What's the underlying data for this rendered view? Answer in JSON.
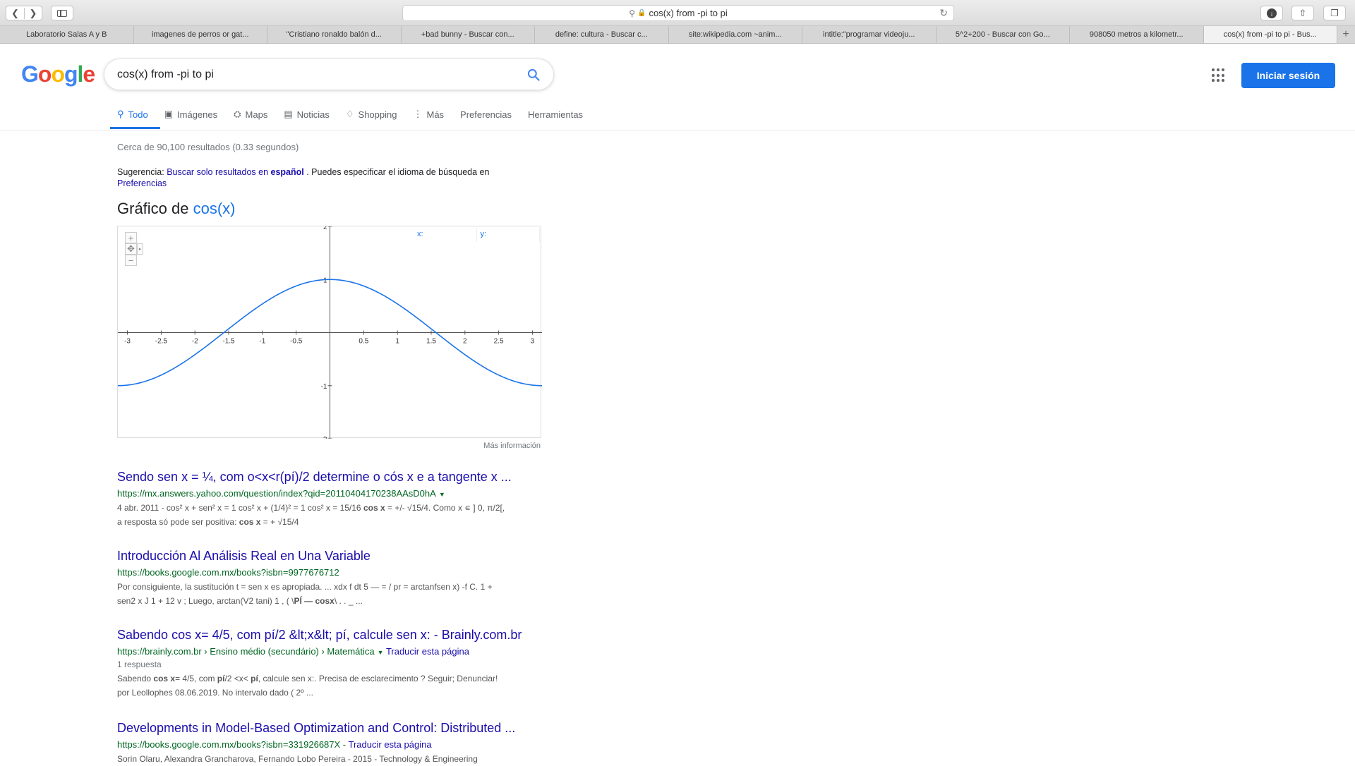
{
  "browser": {
    "address": "cos(x) from -pi to pi",
    "tabs": [
      {
        "label": "Laboratorio Salas A y B"
      },
      {
        "label": "imagenes de perros or gat..."
      },
      {
        "label": "\"Cristiano ronaldo balón d..."
      },
      {
        "label": "+bad bunny - Buscar con..."
      },
      {
        "label": "define: cultura - Buscar c..."
      },
      {
        "label": "site:wikipedia.com ~anim..."
      },
      {
        "label": "intitle:\"programar videoju..."
      },
      {
        "label": "5^2+200 - Buscar con Go..."
      },
      {
        "label": "908050 metros a kilometr..."
      },
      {
        "label": "cos(x) from -pi to pi - Bus..."
      }
    ]
  },
  "google": {
    "query": "cos(x) from -pi to pi",
    "signin": "Iniciar sesión",
    "nav": [
      {
        "label": "Todo",
        "icon": "search-icon"
      },
      {
        "label": "Imágenes",
        "icon": "image-icon"
      },
      {
        "label": "Maps",
        "icon": "map-icon"
      },
      {
        "label": "Noticias",
        "icon": "news-icon"
      },
      {
        "label": "Shopping",
        "icon": "tag-icon"
      },
      {
        "label": "Más",
        "icon": "more-vert-icon"
      },
      {
        "label": "Preferencias",
        "icon": ""
      },
      {
        "label": "Herramientas",
        "icon": ""
      }
    ],
    "stats": "Cerca de 90,100 resultados (0.33 segundos)",
    "suggestion": {
      "prefix": "Sugerencia: ",
      "link_text": "Buscar solo resultados en ",
      "link_bold": "español",
      "middle": " . Puedes especificar el idioma de búsqueda en ",
      "pref_link": "Preferencias"
    }
  },
  "graph": {
    "title_prefix": "Gráfico de ",
    "title_func": "cos(x)",
    "x_label": "x:",
    "y_label": "y:",
    "more_info": "Más información"
  },
  "chart_data": {
    "type": "line",
    "function": "cos(x)",
    "xlim": [
      -3.14159,
      3.14159
    ],
    "ylim": [
      -2,
      2
    ],
    "x_ticks": [
      -3,
      -2.5,
      -2,
      -1.5,
      -1,
      -0.5,
      0.5,
      1,
      1.5,
      2,
      2.5,
      3
    ],
    "x_tick_labels": [
      "-3",
      "-2.5",
      "-2",
      "-1.5",
      "-1",
      "-0.5",
      "0.5",
      "1",
      "1.5",
      "2",
      "2.5",
      "3"
    ],
    "y_ticks": [
      -2,
      -1,
      1,
      2
    ],
    "y_tick_labels": [
      "-2",
      "-1",
      "1",
      "2"
    ],
    "series": [
      {
        "color": "#1a73e8"
      }
    ]
  },
  "results": [
    {
      "title": "Sendo sen x = ¼, com o<x<r(pí)/2 determine o cós x e a tangente x ...",
      "url": "https://mx.answers.yahoo.com/question/index?qid=20110404170238AAsD0hA",
      "translate": "",
      "snippet_1": "4 abr. 2011 - cos² x + sen² x = 1 cos² x + (1/4)² = 1 cos² x = 15/16 ",
      "snippet_1b": "cos x",
      "snippet_1c": " = +/- √15/4. Como x ∊ ] 0, π/2[,",
      "snippet_2": "a resposta só pode ser positiva: ",
      "snippet_2b": "cos x",
      "snippet_2c": " = + √15/4"
    },
    {
      "title": "Introducción Al Análisis Real en Una Variable",
      "url": "https://books.google.com.mx/books?isbn=9977676712",
      "snippet_1": "Por consiguiente, la sustitución t = sen x es apropiada. ... xdx f dt 5 — = / pr = arctanfsen x) -f C. 1 +",
      "snippet_2": "sen2 x J 1 + 12 v ; Luego, arctan(V2 tani) 1 , ( \\",
      "snippet_2b": "PÍ — cosx",
      "snippet_2c": "\\ . . _ ..."
    },
    {
      "title": "Sabendo cos x= 4/5, com pí/2 &lt;x&lt; pí, calcule sen x: - Brainly.com.br",
      "url": "https://brainly.com.br › Ensino médio (secundário) › Matemática",
      "translate": "Traducir esta página",
      "meta": "1 respuesta",
      "snippet_1a": "Sabendo ",
      "snippet_1b": "cos x",
      "snippet_1c": "= 4/5, com ",
      "snippet_1d": "pí",
      "snippet_1e": "/2 <x< ",
      "snippet_1f": "pí",
      "snippet_1g": ", calcule sen x:. Precisa de esclarecimento ? Seguir; Denunciar!",
      "snippet_2": "por Leollophes 08.06.2019. No intervalo dado ( 2º ..."
    },
    {
      "title": "Developments in Model-Based Optimization and Control: Distributed ...",
      "url": "https://books.google.com.mx/books?isbn=331926687X",
      "translate": "Traducir esta página",
      "snippet_1": "Sorin Olaru, Alexandra Grancharova, Fernando Lobo Pereira - 2015 - Technology & Engineering"
    }
  ]
}
